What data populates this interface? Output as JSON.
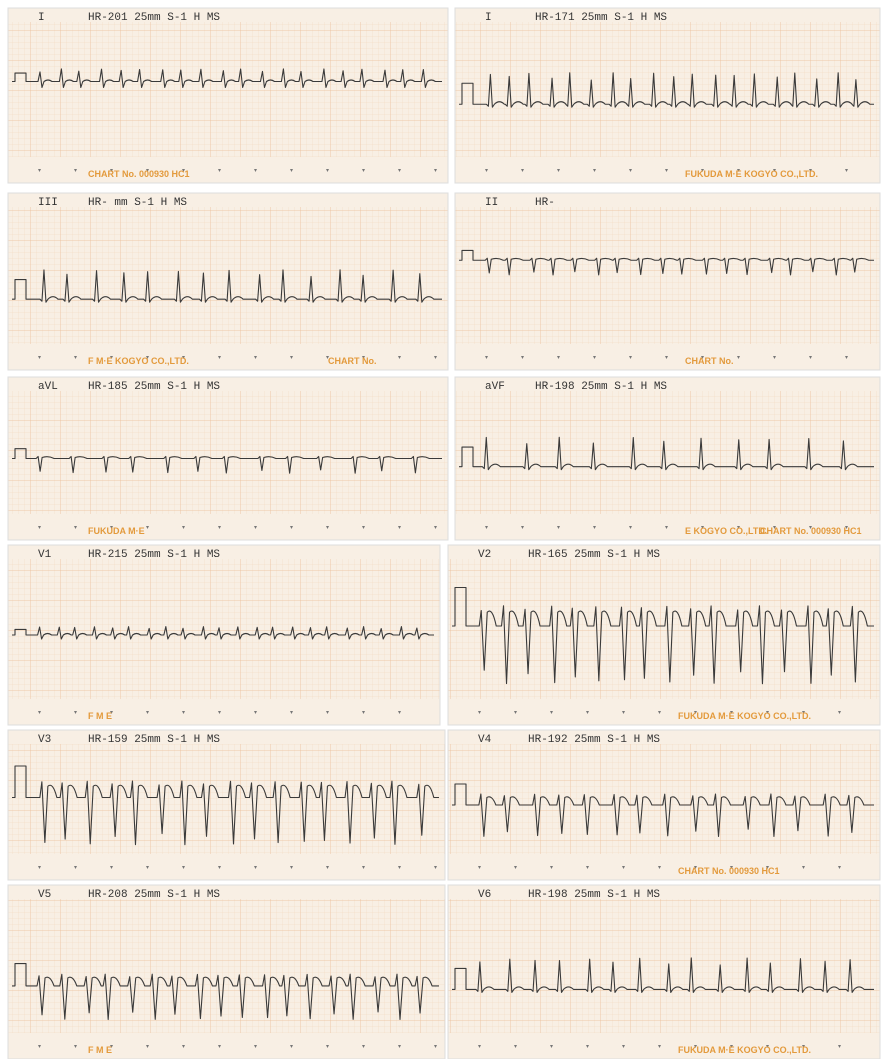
{
  "panels": [
    {
      "lead": "I",
      "header": "HR-201 25mm S-1 H MS",
      "footer": [
        "CHART No. 000930 HC1"
      ]
    },
    {
      "lead": "I",
      "header": "HR-171 25mm S-1 H MS",
      "footer": [
        "FUKUDA M·E KOGYO CO.,LTD."
      ]
    },
    {
      "lead": "III",
      "header": "HR-   mm S-1 H MS",
      "footer": [
        "F M·E KOGYO CO.,LTD.",
        "CHART No."
      ]
    },
    {
      "lead": "II",
      "header": "HR-",
      "footer": [
        "CHART No."
      ]
    },
    {
      "lead": "aVL",
      "header": "HR-185 25mm S-1 H MS",
      "footer": [
        "FUKUDA M·E"
      ]
    },
    {
      "lead": "aVF",
      "header": "HR-198 25mm S-1 H MS",
      "footer": [
        "E KOGYO CO.,LTD.",
        "CHART No. 000930 HC1"
      ]
    },
    {
      "lead": "V1",
      "header": "HR-215 25mm S-1 H MS",
      "footer": [
        "F M E"
      ]
    },
    {
      "lead": "V2",
      "header": "HR-165 25mm S-1 H MS",
      "footer": [
        "FUKUDA M·E KOGYO CO.,LTD."
      ]
    },
    {
      "lead": "V3",
      "header": "HR-159 25mm S-1 H MS",
      "footer": []
    },
    {
      "lead": "V4",
      "header": "HR-192 25mm S-1 H MS",
      "footer": [
        "CHART No. 000930 HC1"
      ]
    },
    {
      "lead": "V5",
      "header": "HR-208 25mm S-1 H MS",
      "footer": [
        "F M E"
      ]
    },
    {
      "lead": "V6",
      "header": "HR-198 25mm S-1 H MS",
      "footer": [
        "FUKUDA M·E KOGYO CO.,LTD."
      ]
    }
  ]
}
